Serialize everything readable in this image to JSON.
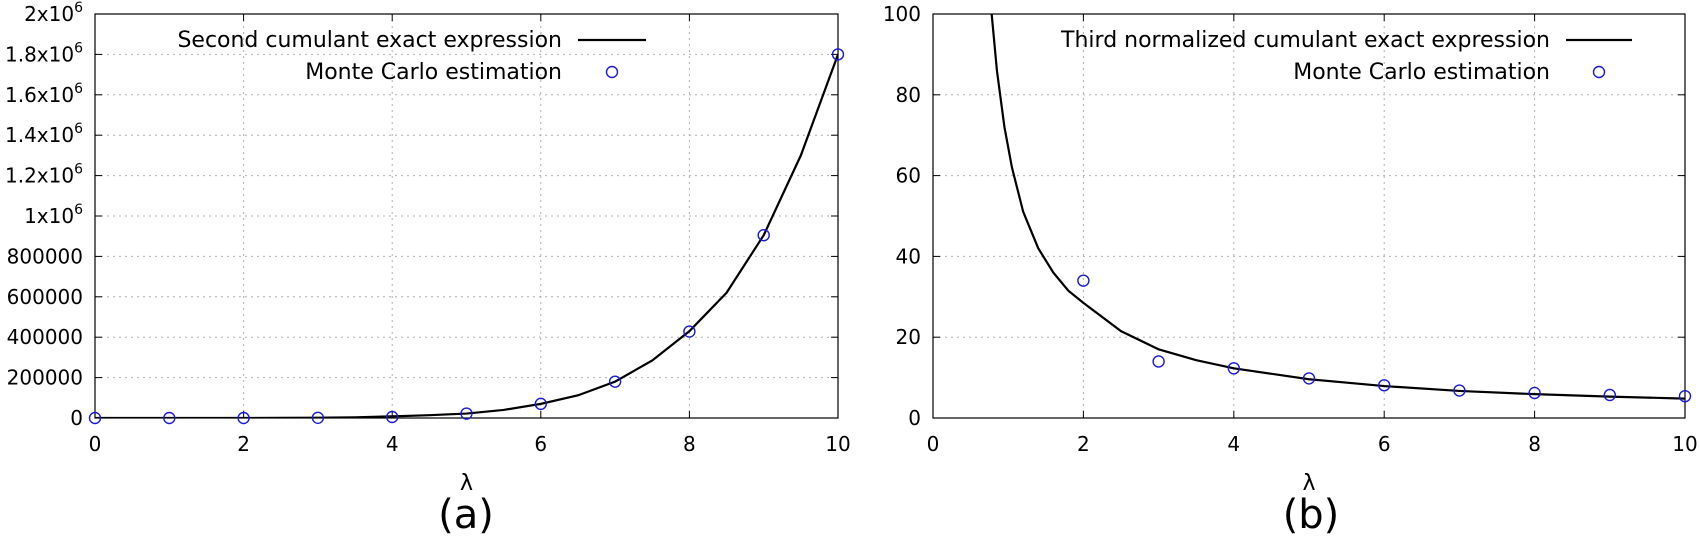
{
  "colors": {
    "curve": "#000000",
    "marker": "#1a1ad6",
    "grid": "#b0b0b0"
  },
  "chart_data": [
    {
      "type": "line",
      "panel_label": "(a)",
      "xlabel": "λ",
      "ylabel": "",
      "xlim": [
        0,
        10
      ],
      "ylim": [
        0,
        2000000
      ],
      "grid": true,
      "legend_position": "top-right",
      "x_ticks": [
        {
          "value": 0,
          "label": "0"
        },
        {
          "value": 2,
          "label": "2"
        },
        {
          "value": 4,
          "label": "4"
        },
        {
          "value": 6,
          "label": "6"
        },
        {
          "value": 8,
          "label": "8"
        },
        {
          "value": 10,
          "label": "10"
        }
      ],
      "y_ticks": [
        {
          "value": 0,
          "label": "0"
        },
        {
          "value": 200000,
          "label": "200000"
        },
        {
          "value": 400000,
          "label": "400000"
        },
        {
          "value": 600000,
          "label": "600000"
        },
        {
          "value": 800000,
          "label": "800000"
        },
        {
          "value": 1000000,
          "base": "1x10",
          "exp": "6"
        },
        {
          "value": 1200000,
          "base": "1.2x10",
          "exp": "6"
        },
        {
          "value": 1400000,
          "base": "1.4x10",
          "exp": "6"
        },
        {
          "value": 1600000,
          "base": "1.6x10",
          "exp": "6"
        },
        {
          "value": 1800000,
          "base": "1.8x10",
          "exp": "6"
        },
        {
          "value": 2000000,
          "base": "2x10",
          "exp": "6"
        }
      ],
      "series": [
        {
          "name": "Second cumulant exact expression",
          "style": "line",
          "x": [
            0,
            0.5,
            1,
            1.5,
            2,
            2.5,
            3,
            3.5,
            4,
            4.5,
            5,
            5.5,
            6,
            6.5,
            7,
            7.5,
            8,
            8.5,
            9,
            9.5,
            10
          ],
          "y": [
            0,
            0,
            0,
            0,
            0,
            500,
            1500,
            3500,
            8000,
            14000,
            22000,
            40000,
            70000,
            112000,
            180000,
            285000,
            430000,
            620000,
            905000,
            1300000,
            1800000
          ]
        },
        {
          "name": "Monte Carlo estimation",
          "style": "markers",
          "x": [
            0,
            1,
            2,
            3,
            4,
            5,
            6,
            7,
            8,
            9,
            10
          ],
          "y": [
            0,
            0,
            0,
            1000,
            5000,
            22000,
            70000,
            180000,
            428000,
            905000,
            1800000
          ]
        }
      ]
    },
    {
      "type": "line",
      "panel_label": "(b)",
      "xlabel": "λ",
      "ylabel": "",
      "xlim": [
        0,
        10
      ],
      "ylim": [
        0,
        100
      ],
      "grid": true,
      "legend_position": "top-right",
      "x_ticks": [
        {
          "value": 0,
          "label": "0"
        },
        {
          "value": 2,
          "label": "2"
        },
        {
          "value": 4,
          "label": "4"
        },
        {
          "value": 6,
          "label": "6"
        },
        {
          "value": 8,
          "label": "8"
        },
        {
          "value": 10,
          "label": "10"
        }
      ],
      "y_ticks": [
        {
          "value": 0,
          "label": "0"
        },
        {
          "value": 20,
          "label": "20"
        },
        {
          "value": 40,
          "label": "40"
        },
        {
          "value": 60,
          "label": "60"
        },
        {
          "value": 80,
          "label": "80"
        },
        {
          "value": 100,
          "label": "100"
        }
      ],
      "series": [
        {
          "name": "Third normalized cumulant exact expression",
          "style": "line",
          "x": [
            0.78,
            0.85,
            0.95,
            1.05,
            1.2,
            1.4,
            1.6,
            1.8,
            2,
            2.5,
            3,
            3.5,
            4,
            5,
            6,
            7,
            8,
            9,
            10
          ],
          "y": [
            100,
            86,
            72,
            62,
            51,
            42,
            36,
            31.5,
            28.5,
            21.5,
            17,
            14.3,
            12.3,
            9.6,
            7.9,
            6.7,
            5.9,
            5.3,
            4.8
          ]
        },
        {
          "name": "Monte Carlo estimation",
          "style": "markers",
          "x": [
            2,
            3,
            4,
            5,
            6,
            7,
            8,
            9,
            10
          ],
          "y": [
            34,
            14,
            12.3,
            9.8,
            8.1,
            6.8,
            6.2,
            5.7,
            5.4
          ]
        }
      ]
    }
  ]
}
